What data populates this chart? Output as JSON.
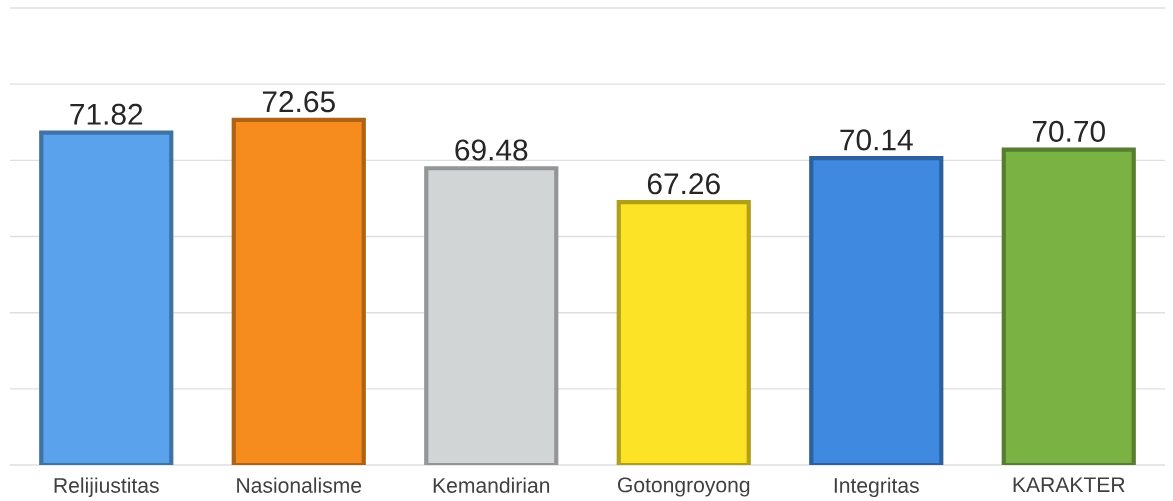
{
  "chart_data": {
    "type": "bar",
    "categories": [
      "Relijiustitas",
      "Nasionalisme",
      "Kemandirian",
      "Gotongroyong",
      "Integritas",
      "KARAKTER"
    ],
    "values": [
      71.82,
      72.65,
      69.48,
      67.26,
      70.14,
      70.7
    ],
    "value_labels": [
      "71.82",
      "72.65",
      "69.48",
      "67.26",
      "70.14",
      "70.70"
    ],
    "colors": [
      "#5aa3ec",
      "#f78c1e",
      "#d2d5d6",
      "#fde325",
      "#3f8ae0",
      "#7bb244"
    ],
    "ylim": [
      50,
      80
    ],
    "yticks": [
      {
        "value": 50,
        "label": null
      },
      {
        "value": 55,
        "label": null
      },
      {
        "value": 60,
        "label": null
      },
      {
        "value": 65,
        "label": null
      },
      {
        "value": 70,
        "label": null
      },
      {
        "value": 75,
        "label": null
      },
      {
        "value": 80,
        "label": null
      }
    ],
    "grid": "y",
    "tick_labels": "x"
  }
}
